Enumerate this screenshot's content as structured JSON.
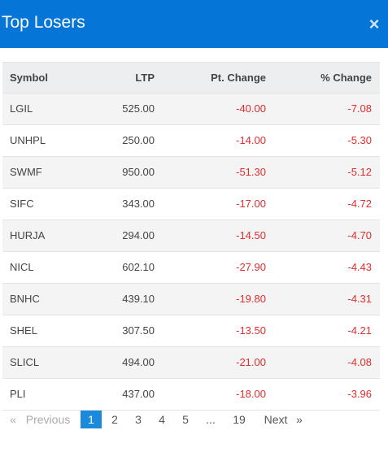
{
  "header": {
    "title": "Top Losers",
    "close_icon": "×"
  },
  "table": {
    "columns": [
      "Symbol",
      "LTP",
      "Pt. Change",
      "% Change"
    ],
    "rows": [
      {
        "symbol": "LGIL",
        "ltp": "525.00",
        "pt_change": "-40.00",
        "pct_change": "-7.08"
      },
      {
        "symbol": "UNHPL",
        "ltp": "250.00",
        "pt_change": "-14.00",
        "pct_change": "-5.30"
      },
      {
        "symbol": "SWMF",
        "ltp": "950.00",
        "pt_change": "-51.30",
        "pct_change": "-5.12"
      },
      {
        "symbol": "SIFC",
        "ltp": "343.00",
        "pt_change": "-17.00",
        "pct_change": "-4.72"
      },
      {
        "symbol": "HURJA",
        "ltp": "294.00",
        "pt_change": "-14.50",
        "pct_change": "-4.70"
      },
      {
        "symbol": "NICL",
        "ltp": "602.10",
        "pt_change": "-27.90",
        "pct_change": "-4.43"
      },
      {
        "symbol": "BNHC",
        "ltp": "439.10",
        "pt_change": "-19.80",
        "pct_change": "-4.31"
      },
      {
        "symbol": "SHEL",
        "ltp": "307.50",
        "pt_change": "-13.50",
        "pct_change": "-4.21"
      },
      {
        "symbol": "SLICL",
        "ltp": "494.00",
        "pt_change": "-21.00",
        "pct_change": "-4.08"
      },
      {
        "symbol": "PLI",
        "ltp": "437.00",
        "pt_change": "-18.00",
        "pct_change": "-3.96"
      }
    ]
  },
  "pagination": {
    "prev_arrow": "«",
    "prev_label": "Previous",
    "pages": [
      "1",
      "2",
      "3",
      "4",
      "5"
    ],
    "active_page": "1",
    "ellipsis": "...",
    "last_page": "19",
    "next_label": "Next",
    "next_arrow": "»"
  },
  "colors": {
    "header": "#0575d8",
    "negative": "#e22d2d",
    "active_page": "#1c8adb"
  }
}
